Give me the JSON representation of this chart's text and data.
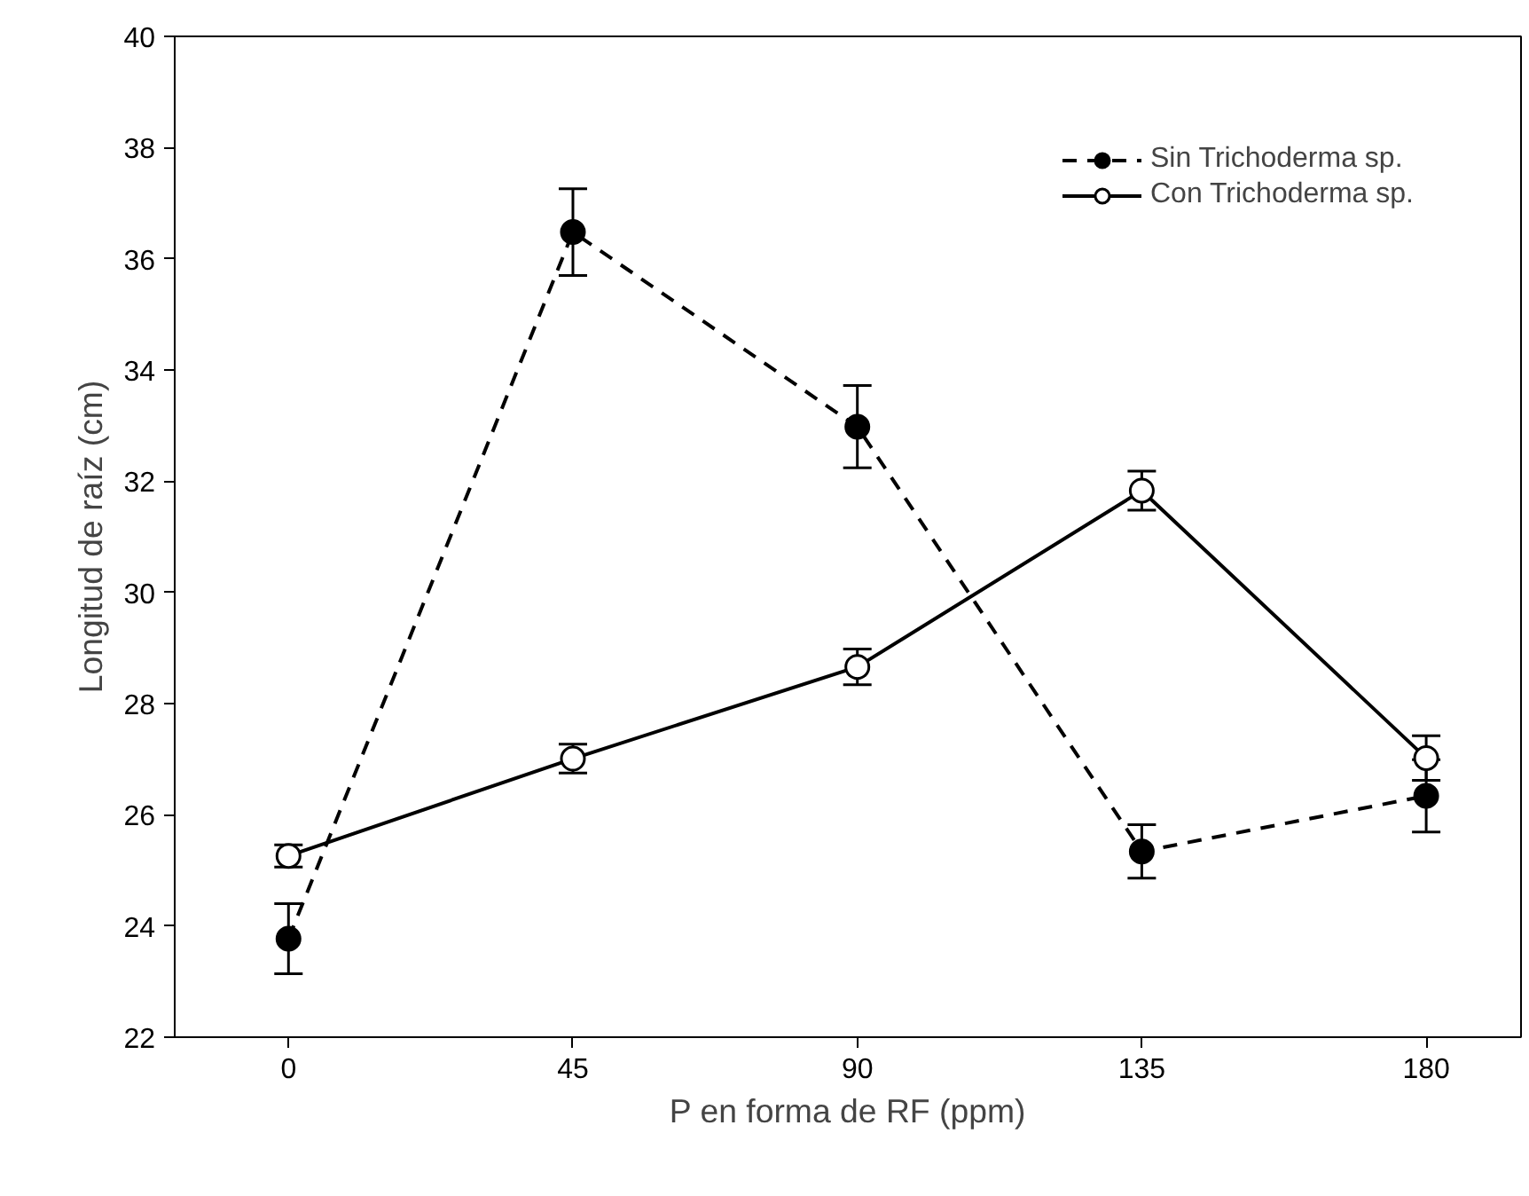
{
  "chart_data": {
    "type": "line",
    "xlabel": "P en forma de RF (ppm)",
    "ylabel": "Longitud de raíz (cm)",
    "x": [
      0,
      45,
      90,
      135,
      180
    ],
    "series": [
      {
        "name": "Sin Trichoderma sp.",
        "color": "#000000",
        "marker": "circle",
        "line_style": "dashed",
        "values": [
          23.77,
          36.48,
          32.98,
          25.34,
          26.34
        ],
        "errors": [
          0.63,
          0.78,
          0.74,
          0.48,
          0.65
        ]
      },
      {
        "name": "Con Trichoderma sp.",
        "color": "#000000",
        "marker": "circle_open",
        "line_style": "solid",
        "values": [
          25.26,
          27.01,
          28.66,
          31.83,
          27.02
        ],
        "errors": [
          0.2,
          0.26,
          0.32,
          0.35,
          0.4
        ]
      }
    ],
    "xlim": [
      -18,
      195
    ],
    "ylim": [
      22,
      40
    ],
    "xticks": [
      0,
      45,
      90,
      135,
      180
    ],
    "yticks": [
      22,
      24,
      26,
      28,
      30,
      32,
      34,
      36,
      38,
      40
    ],
    "grid": false,
    "legend": "top right"
  }
}
